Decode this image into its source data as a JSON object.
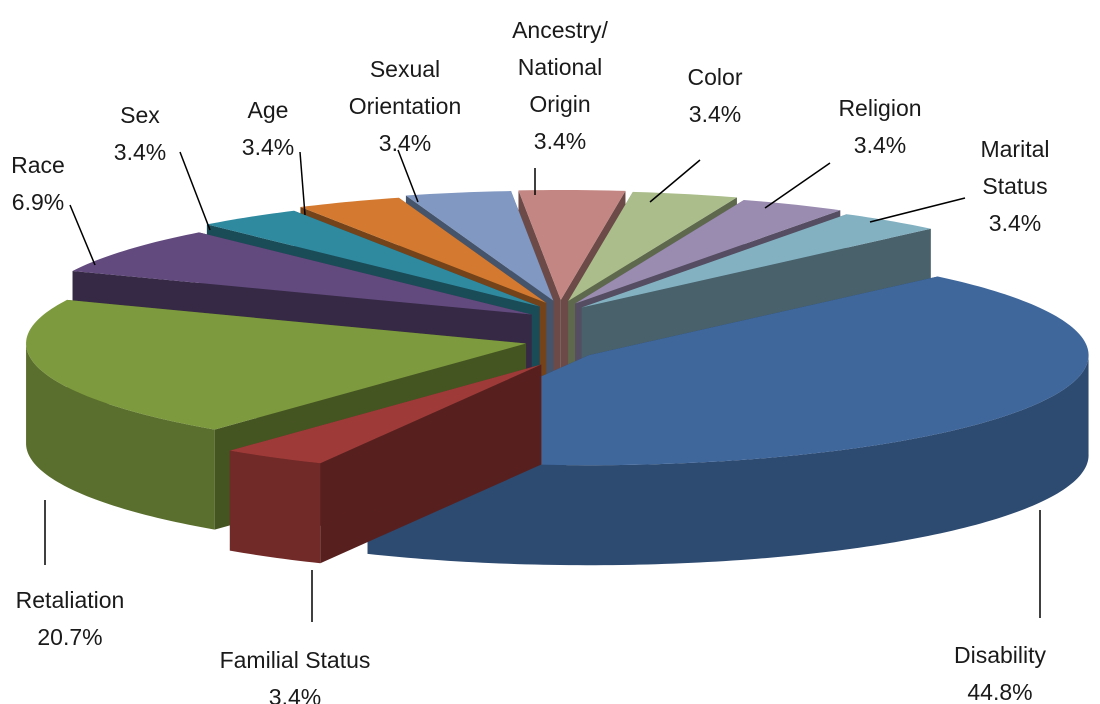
{
  "chart_data": {
    "type": "pie3d",
    "categories": [
      "Disability",
      "Familial Status",
      "Retaliation",
      "Race",
      "Sex",
      "Age",
      "Sexual Orientation",
      "Ancestry/ National Origin",
      "Color",
      "Religion",
      "Marital Status"
    ],
    "values": [
      44.8,
      3.4,
      20.7,
      6.9,
      3.4,
      3.4,
      3.4,
      3.4,
      3.4,
      3.4,
      3.4
    ],
    "value_labels": [
      "44.8%",
      "3.4%",
      "20.7%",
      "6.9%",
      "3.4%",
      "3.4%",
      "3.4%",
      "3.4%",
      "3.4%",
      "3.4%",
      "3.4%"
    ],
    "colors": [
      "#3f679c",
      "#9e3b38",
      "#7d9a3e",
      "#624a7e",
      "#2f8aa0",
      "#d37a30",
      "#8098c2",
      "#c48682",
      "#aabd8a",
      "#9a8cb1",
      "#83b1c2"
    ]
  }
}
